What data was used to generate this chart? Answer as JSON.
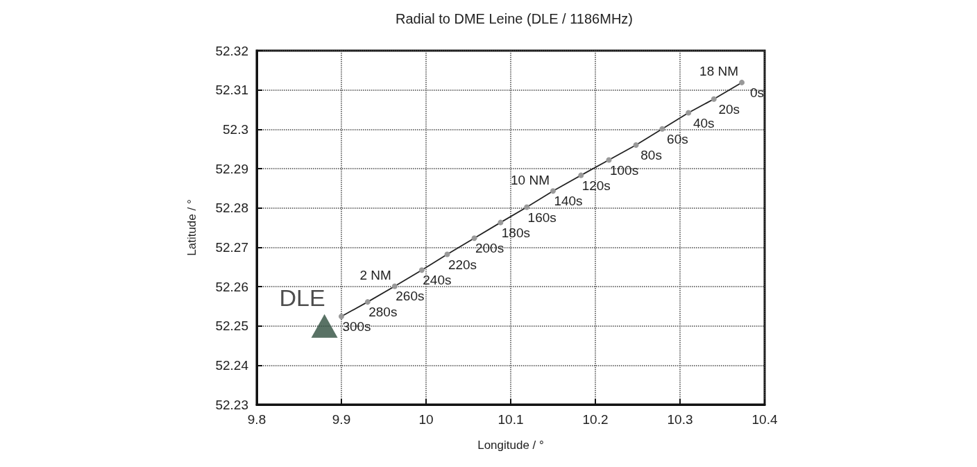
{
  "chart_data": {
    "type": "line",
    "title": "Radial to DME Leine (DLE / 1186MHz)",
    "xlabel": "Longitude / °",
    "ylabel": "Latitude / °",
    "xlim": [
      9.8,
      10.4
    ],
    "xticks": [
      9.8,
      9.9,
      10,
      10.1,
      10.2,
      10.3,
      10.4
    ],
    "ylim": [
      52.23,
      52.32
    ],
    "yticks": [
      52.23,
      52.24,
      52.25,
      52.26,
      52.27,
      52.28,
      52.29,
      52.3,
      52.31,
      52.32
    ],
    "grid": true,
    "marker": "circle",
    "line_style": "solid",
    "series": [
      {
        "color": "#999999",
        "x": [
          10.373,
          10.34,
          10.31,
          10.279,
          10.248,
          10.216,
          10.183,
          10.15,
          10.119,
          10.088,
          10.057,
          10.025,
          9.995,
          9.963,
          9.931,
          9.9
        ],
        "values": [
          52.3119,
          52.3077,
          52.3042,
          52.3001,
          52.296,
          52.2922,
          52.2883,
          52.2843,
          52.2802,
          52.2763,
          52.2723,
          52.2682,
          52.2642,
          52.2601,
          52.2561,
          52.2524
        ]
      },
      {
        "type": "scatter",
        "name": "DLE",
        "color": "#2f4f3e",
        "marker": "triangle",
        "x": [
          9.88
        ],
        "values": [
          52.25
        ]
      }
    ],
    "annotations": [
      {
        "text": "0s",
        "x": 10.373,
        "y": 52.3119
      },
      {
        "text": "20s",
        "x": 10.34,
        "y": 52.3077
      },
      {
        "text": "40s",
        "x": 10.31,
        "y": 52.3042
      },
      {
        "text": "60s",
        "x": 10.279,
        "y": 52.3001
      },
      {
        "text": "80s",
        "x": 10.248,
        "y": 52.296
      },
      {
        "text": "100s",
        "x": 10.216,
        "y": 52.2922
      },
      {
        "text": "120s",
        "x": 10.183,
        "y": 52.2883
      },
      {
        "text": "140s",
        "x": 10.15,
        "y": 52.2843
      },
      {
        "text": "160s",
        "x": 10.119,
        "y": 52.2802
      },
      {
        "text": "180s",
        "x": 10.088,
        "y": 52.2763
      },
      {
        "text": "200s",
        "x": 10.057,
        "y": 52.2723
      },
      {
        "text": "220s",
        "x": 10.025,
        "y": 52.2682
      },
      {
        "text": "240s",
        "x": 9.995,
        "y": 52.2642
      },
      {
        "text": "260s",
        "x": 9.963,
        "y": 52.2601
      },
      {
        "text": "280s",
        "x": 9.931,
        "y": 52.2561
      },
      {
        "text": "300s",
        "x": 9.9,
        "y": 52.2524
      },
      {
        "text": "18 NM",
        "x": 10.373,
        "y": 52.3119
      },
      {
        "text": "10 NM",
        "x": 10.15,
        "y": 52.2843
      },
      {
        "text": "2 NM",
        "x": 9.963,
        "y": 52.2601
      }
    ]
  }
}
